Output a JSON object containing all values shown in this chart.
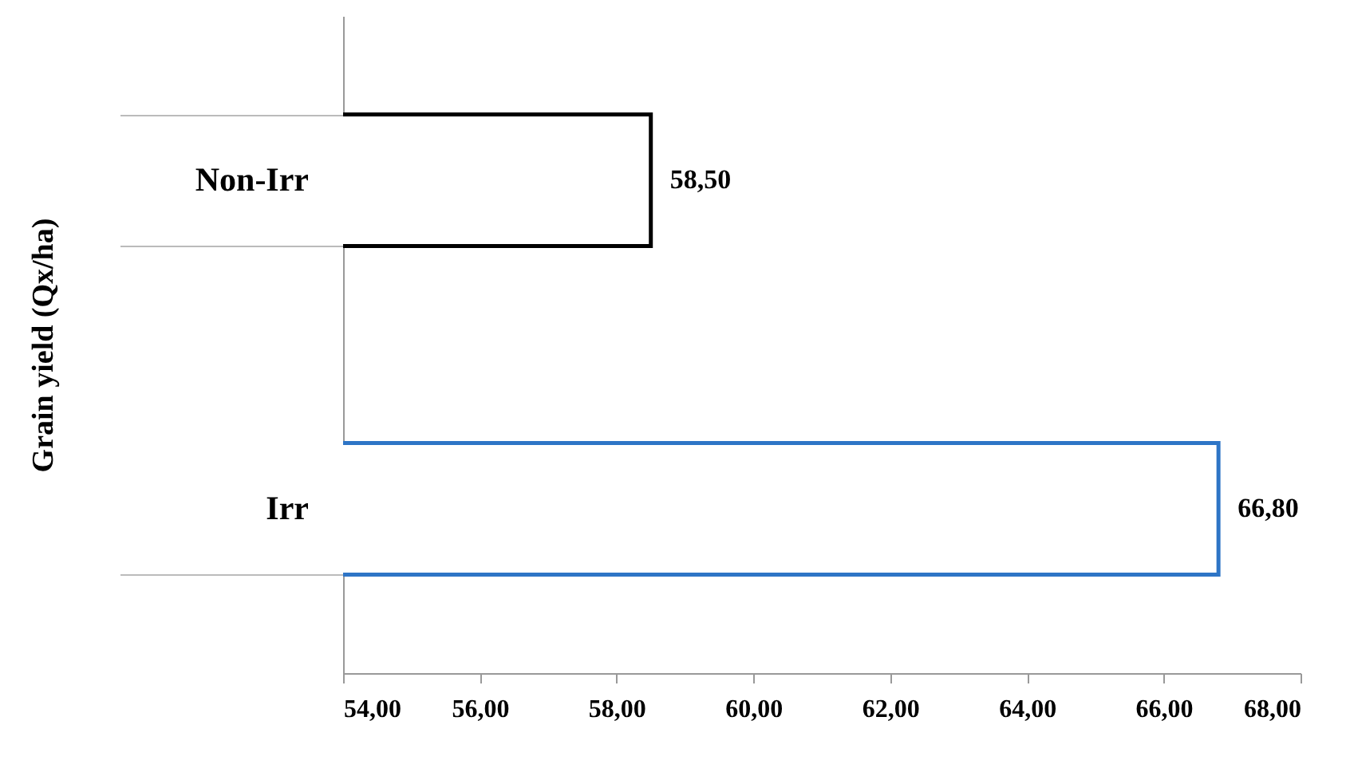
{
  "chart_data": {
    "type": "bar",
    "orientation": "horizontal",
    "ylabel": "Grain yield (Qx/ha)",
    "categories": [
      "Non-Irr",
      "Irr"
    ],
    "values": [
      58.5,
      66.8
    ],
    "colors": [
      "#000000",
      "#2e75c6"
    ],
    "value_labels": [
      "58,50",
      "66,80"
    ],
    "xlim": [
      54,
      68
    ],
    "xticks": [
      {
        "value": 54,
        "label": "54,00"
      },
      {
        "value": 56,
        "label": "56,00"
      },
      {
        "value": 58,
        "label": "58,00"
      },
      {
        "value": 60,
        "label": "60,00"
      },
      {
        "value": 62,
        "label": "62,00"
      },
      {
        "value": 64,
        "label": "64,00"
      },
      {
        "value": 66,
        "label": "66,00"
      },
      {
        "value": 68,
        "label": "68,00"
      }
    ]
  }
}
